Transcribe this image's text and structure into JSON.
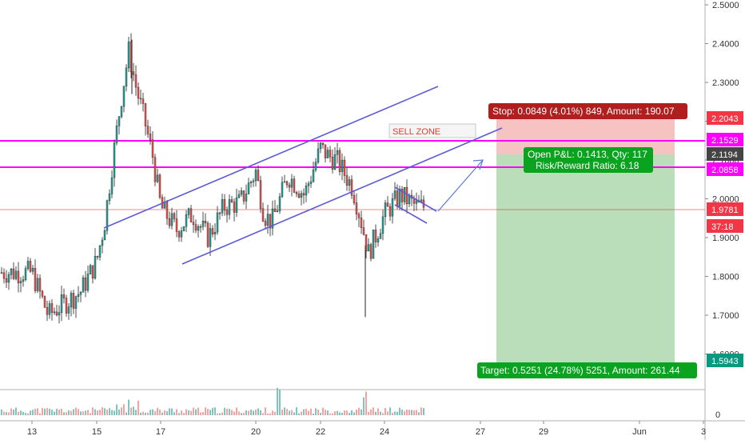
{
  "chart_data": {
    "type": "candlestick",
    "title": "",
    "xlabel": "",
    "ylabel": "",
    "ylim": [
      1.5,
      2.5
    ],
    "grid": false,
    "y_ticks": [
      "2.5000",
      "2.4000",
      "2.3000",
      "2.2000",
      "2.1000",
      "2.0000",
      "1.9000",
      "1.8000",
      "1.7000",
      "1.6000"
    ],
    "x_ticks": [
      "13",
      "15",
      "17",
      "20",
      "22",
      "24",
      "27",
      "29",
      "Jun",
      "3"
    ],
    "volume_ticks": [
      "0"
    ],
    "candles_x": [
      13,
      13.5,
      14,
      14.5,
      15,
      15.25,
      15.5,
      15.75,
      16,
      16.25,
      16.5,
      16.75,
      17,
      17.5,
      18,
      18.5,
      19,
      19.5,
      20,
      20.25,
      20.5,
      21,
      21.5,
      22,
      22.25,
      22.5,
      23,
      23.25,
      23.5,
      24,
      24.5,
      25
    ],
    "candles_close": [
      1.81,
      1.7,
      1.73,
      1.76,
      1.84,
      1.94,
      2.1,
      2.25,
      2.38,
      2.28,
      2.2,
      2.11,
      1.98,
      1.92,
      1.96,
      1.9,
      1.98,
      1.99,
      2.07,
      1.96,
      1.94,
      2.06,
      2.01,
      2.13,
      2.11,
      2.1,
      2.03,
      1.95,
      1.86,
      1.96,
      2.01,
      1.98
    ],
    "price_lines": [
      {
        "value": "2.1529",
        "color": "#ff00ff"
      },
      {
        "value": "2.0858",
        "color": "#ff00ff"
      },
      {
        "value": "1.9781",
        "color": "#f23645"
      }
    ],
    "price_labels": [
      {
        "text": "2.2043",
        "color": "#f23645"
      },
      {
        "text": "2.1529",
        "color": "#ff00ff"
      },
      {
        "text": "2.1194",
        "color": "#444444"
      },
      {
        "text": "2.0858",
        "color": "#ff00ff"
      },
      {
        "text": "1.9781",
        "color": "#f23645"
      },
      {
        "text": "37:18",
        "color": "#f23645"
      },
      {
        "text": "1.5943",
        "color": "#089981"
      }
    ],
    "annotations": {
      "sell_zone": "SELL ZONE",
      "stop": "Stop: 0.0849 (4.01%) 849, Amount: 190.07",
      "open_pnl": "Open P&L: 0.1413, Qty: 117",
      "risk_reward": "Risk/Reward Ratio: 6.18",
      "target": "Target: 0.5251 (24.78%) 5251, Amount: 261.44"
    },
    "position": {
      "entry": 2.1194,
      "stop": 2.2043,
      "target": 1.5943,
      "from_x": 27.6,
      "to_x": 30.3
    },
    "colors": {
      "up": "#26a69a",
      "down": "#ef5350",
      "line": "#5b5bd6"
    }
  }
}
